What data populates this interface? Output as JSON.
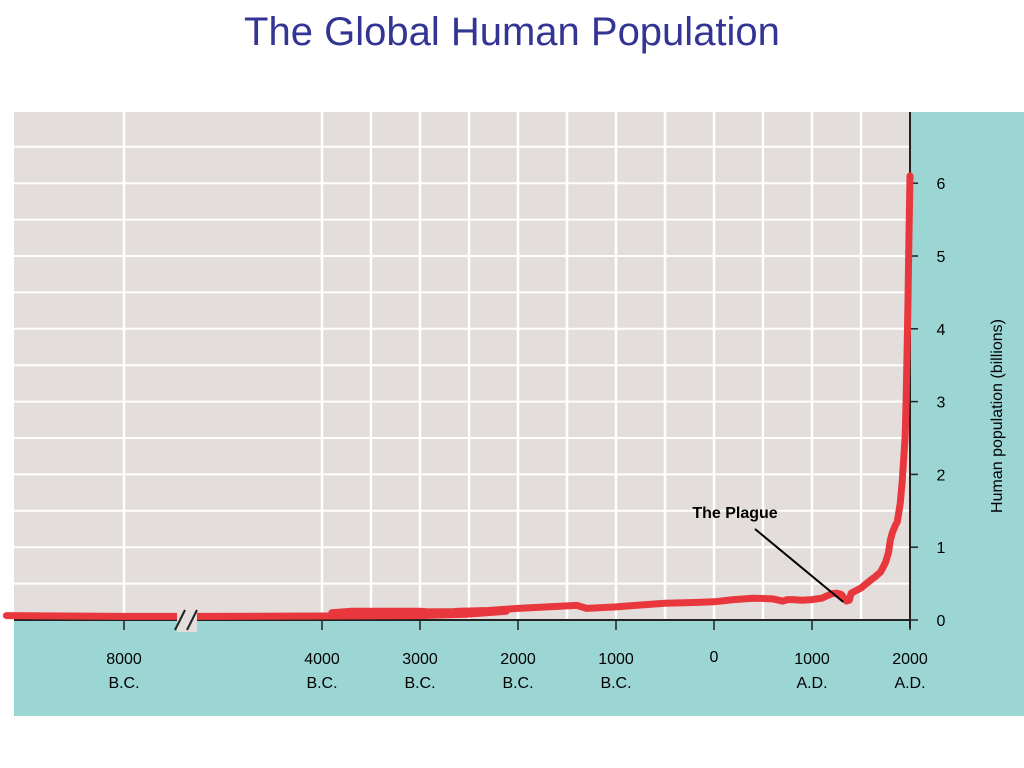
{
  "chart_data": {
    "type": "line",
    "title": "The Global Human Population",
    "ylabel": "Human population (billions)",
    "xlabel": "",
    "ylim": [
      0,
      6.5
    ],
    "y_ticks": [
      0,
      1,
      2,
      3,
      4,
      5,
      6
    ],
    "x_ticks": [
      {
        "year": -8000,
        "line1": "8000",
        "line2": "B.C."
      },
      {
        "year": -4000,
        "line1": "4000",
        "line2": "B.C."
      },
      {
        "year": -3000,
        "line1": "3000",
        "line2": "B.C."
      },
      {
        "year": -2000,
        "line1": "2000",
        "line2": "B.C."
      },
      {
        "year": -1000,
        "line1": "1000",
        "line2": "B.C."
      },
      {
        "year": 0,
        "line1": "0",
        "line2": ""
      },
      {
        "year": 1000,
        "line1": "1000",
        "line2": "A.D."
      },
      {
        "year": 2000,
        "line1": "2000",
        "line2": "A.D."
      }
    ],
    "axis_break": "between 8000 B.C. and 4000 B.C.",
    "grid": true,
    "annotation": {
      "text": "The Plague",
      "year": 1350,
      "value": 0.33
    },
    "series": [
      {
        "color": "#e8383d",
        "x": [
          -9200,
          -8000,
          -7200,
          -5000,
          -4500,
          -4100,
          -3900,
          -3700,
          -3500,
          -3000,
          -2800,
          -2600,
          -2300,
          -2000,
          -1700,
          -1400,
          -1300,
          -1000,
          -800,
          -500,
          -200,
          0,
          200,
          400,
          600,
          700,
          750,
          800,
          900,
          1000,
          1100,
          1200,
          1250,
          1300,
          1350,
          1380,
          1400,
          1500,
          1600,
          1650,
          1700,
          1750,
          1780,
          1800,
          1820,
          1850,
          1870,
          1900,
          1920,
          1940,
          1950,
          1960,
          1970,
          1980,
          1990,
          2000
        ],
        "values": [
          0.06,
          0.05,
          0.05,
          0.06,
          0.08,
          0.12,
          0.1,
          0.12,
          0.12,
          0.12,
          0.1,
          0.12,
          0.13,
          0.16,
          0.18,
          0.2,
          0.16,
          0.18,
          0.2,
          0.23,
          0.24,
          0.25,
          0.28,
          0.3,
          0.29,
          0.26,
          0.28,
          0.28,
          0.27,
          0.28,
          0.3,
          0.36,
          0.37,
          0.35,
          0.26,
          0.27,
          0.37,
          0.44,
          0.55,
          0.6,
          0.66,
          0.79,
          0.92,
          1.1,
          1.2,
          1.3,
          1.35,
          1.6,
          1.9,
          2.3,
          2.5,
          3.0,
          3.7,
          4.4,
          5.3,
          6.1
        ]
      }
    ]
  },
  "colors": {
    "title": "#343494",
    "outer_bg": "#9bd6d4",
    "plot_bg": "#e3dedb",
    "grid": "#ffffff",
    "line": "#e8383d"
  }
}
